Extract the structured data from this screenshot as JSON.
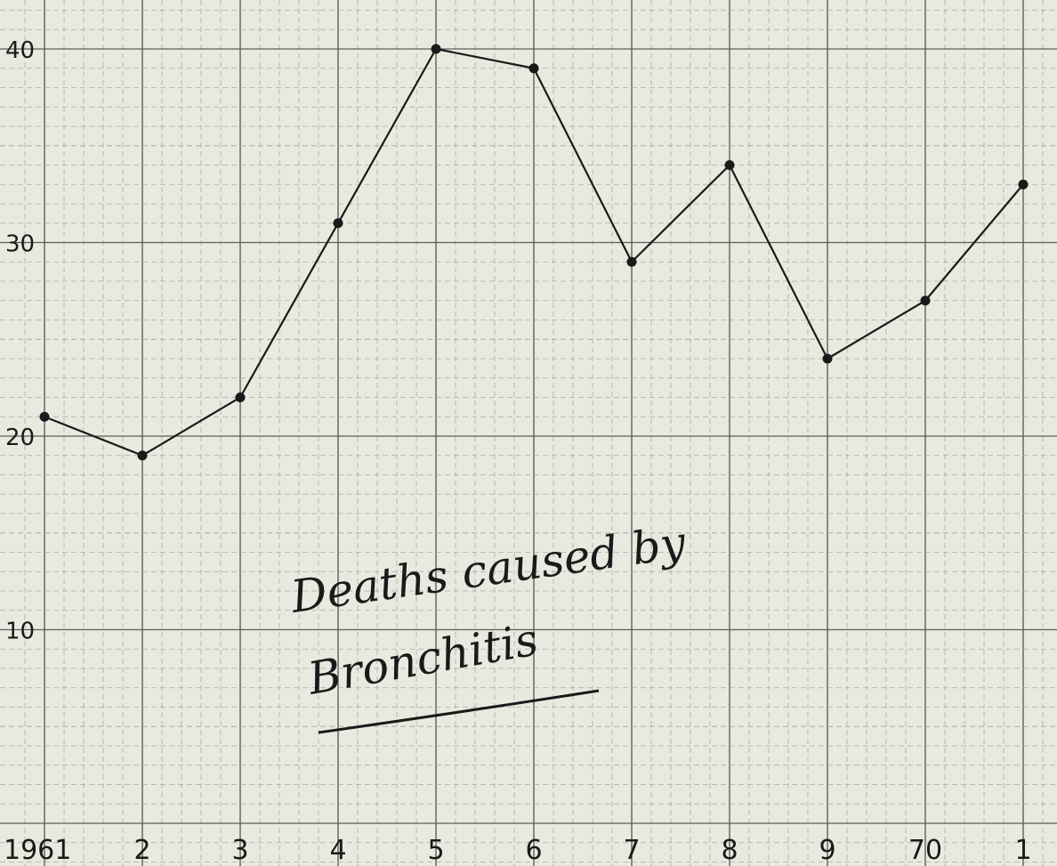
{
  "chart_data": {
    "type": "line",
    "title": "Deaths caused by Bronchitis",
    "x_ticks": [
      "1961",
      "2",
      "3",
      "4",
      "5",
      "6",
      "7",
      "8",
      "9",
      "70",
      "1"
    ],
    "x": [
      1961,
      1962,
      1963,
      1964,
      1965,
      1966,
      1967,
      1968,
      1969,
      1970,
      1971
    ],
    "series": [
      {
        "values": [
          21,
          19,
          22,
          31,
          40,
          39,
          29,
          34,
          24,
          27,
          33
        ]
      }
    ],
    "y_ticks": [
      "10",
      "20",
      "30",
      "40"
    ],
    "ylim": [
      0,
      40
    ],
    "grid": true,
    "colors": {
      "paper": "#e9eadf",
      "grid_minor": "#a9aba6",
      "grid_major": "#5c5e5a",
      "ink": "#1a1a1a"
    }
  }
}
